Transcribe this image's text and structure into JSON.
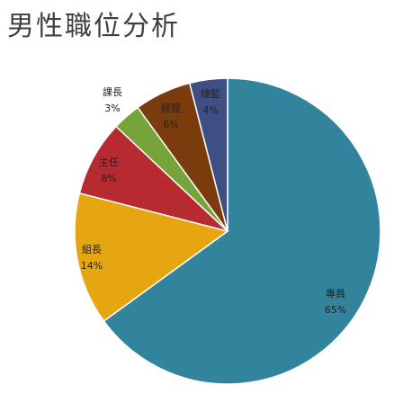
{
  "title": "男性職位分析",
  "chart_data": {
    "type": "pie",
    "title": "男性職位分析",
    "start": "12 o'clock",
    "direction": "clockwise",
    "slices": [
      {
        "label": "專員",
        "value": 65,
        "display": "65%",
        "color": "#31849b"
      },
      {
        "label": "組長",
        "value": 14,
        "display": "14%",
        "color": "#e6a612"
      },
      {
        "label": "主任",
        "value": 8,
        "display": "8%",
        "color": "#b72a2f"
      },
      {
        "label": "課長",
        "value": 3,
        "display": "3%",
        "color": "#77a43a"
      },
      {
        "label": "經理",
        "value": 6,
        "display": "6%",
        "color": "#7a3c0c"
      },
      {
        "label": "總監",
        "value": 4,
        "display": "4%",
        "color": "#3e4f84"
      }
    ]
  }
}
